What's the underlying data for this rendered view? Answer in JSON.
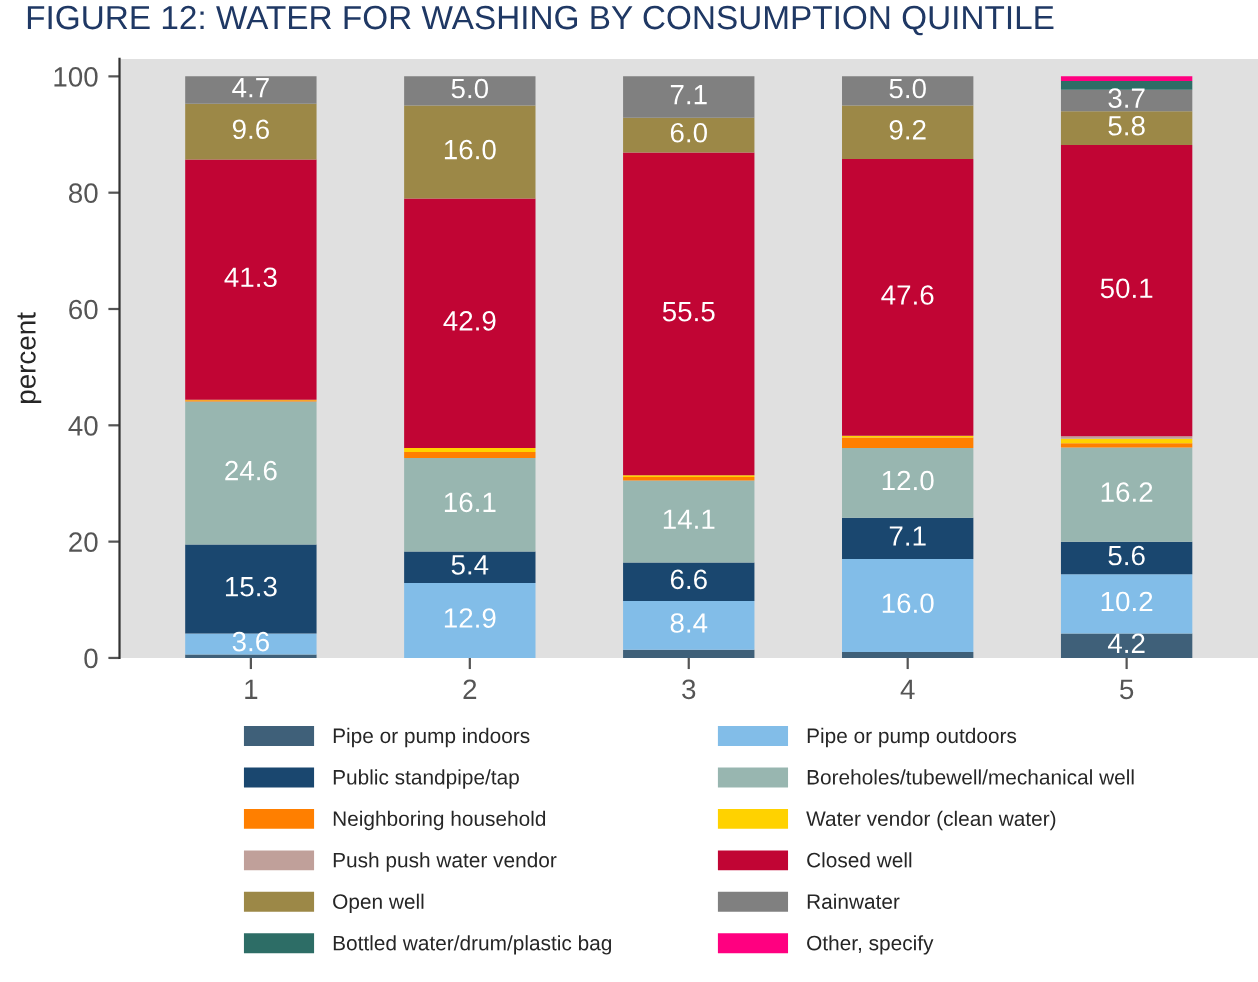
{
  "chart_data": {
    "type": "bar",
    "stacked": true,
    "title": "FIGURE 12: WATER FOR WASHING BY CONSUMPTION QUINTILE",
    "ylabel": "percent",
    "categories": [
      "1",
      "2",
      "3",
      "4",
      "5"
    ],
    "series": [
      {
        "name": "Pipe or pump indoors",
        "color": "#3f6079",
        "values": [
          0.6,
          0.0,
          1.4,
          1.0,
          4.2
        ],
        "value_labels": [
          null,
          null,
          null,
          null,
          "4.2"
        ]
      },
      {
        "name": "Pipe or pump outdoors",
        "color": "#82bde8",
        "values": [
          3.6,
          12.9,
          8.4,
          16.0,
          10.2
        ],
        "value_labels": [
          "3.6",
          "12.9",
          "8.4",
          "16.0",
          "10.2"
        ]
      },
      {
        "name": "Public standpipe/tap",
        "color": "#1a476f",
        "values": [
          15.3,
          5.4,
          6.6,
          7.1,
          5.6
        ],
        "value_labels": [
          "15.3",
          "5.4",
          "6.6",
          "7.1",
          "5.6"
        ]
      },
      {
        "name": "Boreholes/tubewell/mechanical well",
        "color": "#98b6b0",
        "values": [
          24.6,
          16.1,
          14.1,
          12.0,
          16.2
        ],
        "value_labels": [
          "24.6",
          "16.1",
          "14.1",
          "12.0",
          "16.2"
        ]
      },
      {
        "name": "Neighboring household",
        "color": "#ff7f00",
        "values": [
          0.2,
          1.0,
          0.6,
          1.8,
          0.7
        ],
        "value_labels": [
          null,
          null,
          null,
          null,
          null
        ]
      },
      {
        "name": "Water vendor (clean water)",
        "color": "#ffd200",
        "values": [
          0.1,
          0.7,
          0.3,
          0.3,
          0.8
        ],
        "value_labels": [
          null,
          null,
          null,
          null,
          null
        ]
      },
      {
        "name": "Push push water vendor",
        "color": "#c0a09a",
        "values": [
          0.0,
          0.0,
          0.0,
          0.0,
          0.4
        ],
        "value_labels": [
          null,
          null,
          null,
          null,
          null
        ]
      },
      {
        "name": "Closed well",
        "color": "#c10534",
        "values": [
          41.3,
          42.9,
          55.5,
          47.6,
          50.1
        ],
        "value_labels": [
          "41.3",
          "42.9",
          "55.5",
          "47.6",
          "50.1"
        ]
      },
      {
        "name": "Open well",
        "color": "#9c8847",
        "values": [
          9.6,
          16.0,
          6.0,
          9.2,
          5.8
        ],
        "value_labels": [
          "9.6",
          "16.0",
          "6.0",
          "9.2",
          "5.8"
        ]
      },
      {
        "name": "Rainwater",
        "color": "#808080",
        "values": [
          4.7,
          5.0,
          7.1,
          5.0,
          3.7
        ],
        "value_labels": [
          "4.7",
          "5.0",
          "7.1",
          "5.0",
          "3.7"
        ]
      },
      {
        "name": "Bottled water/drum/plastic bag",
        "color": "#2d6d66",
        "values": [
          0.0,
          0.0,
          0.0,
          0.0,
          1.5
        ],
        "value_labels": [
          null,
          null,
          null,
          null,
          null
        ]
      },
      {
        "name": "Other, specify",
        "color": "#ff0080",
        "values": [
          0.0,
          0.0,
          0.0,
          0.0,
          0.8
        ],
        "value_labels": [
          null,
          null,
          null,
          null,
          null
        ]
      }
    ],
    "ylim": [
      0,
      103
    ],
    "yticks": [
      0,
      20,
      40,
      60,
      80,
      100
    ],
    "legend": "bottom"
  }
}
